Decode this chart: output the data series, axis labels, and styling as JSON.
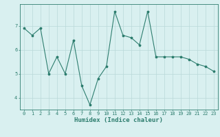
{
  "x": [
    0,
    1,
    2,
    3,
    4,
    5,
    6,
    7,
    8,
    9,
    10,
    11,
    12,
    13,
    14,
    15,
    16,
    17,
    18,
    19,
    20,
    21,
    22,
    23
  ],
  "y": [
    6.9,
    6.6,
    6.9,
    5.0,
    5.7,
    5.0,
    6.4,
    4.5,
    3.7,
    4.8,
    5.3,
    7.6,
    6.6,
    6.5,
    6.2,
    7.6,
    5.7,
    5.7,
    5.7,
    5.7,
    5.6,
    5.4,
    5.3,
    5.1
  ],
  "line_color": "#2d7d6e",
  "marker": "*",
  "marker_size": 2.5,
  "bg_color": "#d9f0f0",
  "grid_color": "#b8d8d8",
  "xlabel": "Humidex (Indice chaleur)",
  "yticks": [
    4,
    5,
    6,
    7
  ],
  "xticks": [
    0,
    1,
    2,
    3,
    4,
    5,
    6,
    7,
    8,
    9,
    10,
    11,
    12,
    13,
    14,
    15,
    16,
    17,
    18,
    19,
    20,
    21,
    22,
    23
  ],
  "ylim": [
    3.5,
    7.9
  ],
  "xlim": [
    -0.5,
    23.5
  ],
  "tick_fontsize": 5.0,
  "xlabel_fontsize": 6.5,
  "linewidth": 0.8
}
